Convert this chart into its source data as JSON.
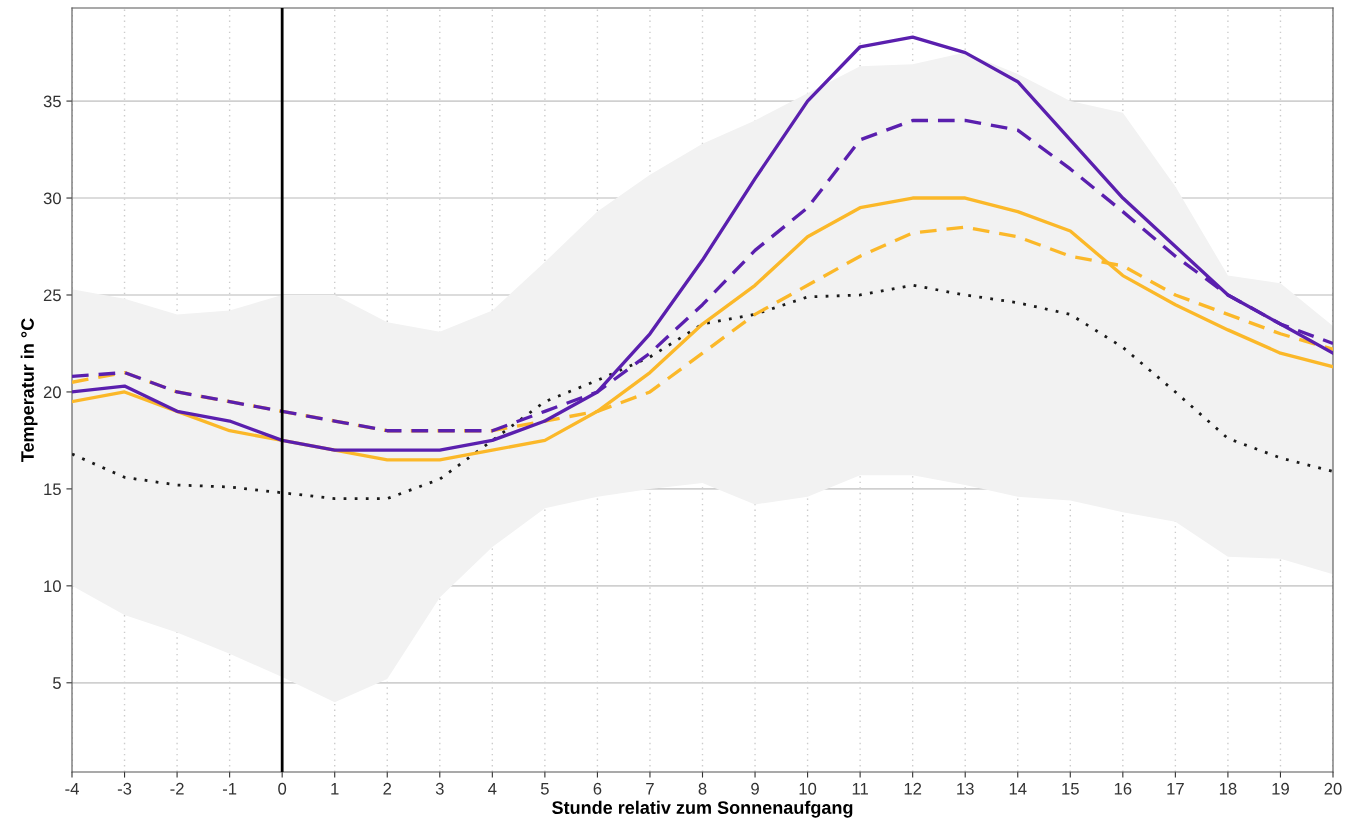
{
  "chart_data": {
    "type": "line",
    "xlabel": "Stunde relativ zum Sonnenaufgang",
    "ylabel": "Temperatur in °C",
    "x": [
      -4,
      -3,
      -2,
      -1,
      0,
      1,
      2,
      3,
      4,
      5,
      6,
      7,
      8,
      9,
      10,
      11,
      12,
      13,
      14,
      15,
      16,
      17,
      18,
      19,
      20
    ],
    "series": [
      {
        "color": "#1a1a1a",
        "line_style": "dotted",
        "values": [
          16.8,
          15.6,
          15.2,
          15.1,
          14.8,
          14.5,
          14.5,
          15.5,
          17.5,
          19.5,
          20.6,
          21.8,
          23.5,
          24,
          24.9,
          25,
          25.5,
          25,
          24.6,
          24,
          22.3,
          20,
          17.6,
          16.6,
          15.9
        ],
        "lower": [
          10,
          8.5,
          7.6,
          6.5,
          5.3,
          4,
          5.2,
          9.4,
          12,
          14,
          14.6,
          15,
          15.3,
          14.2,
          14.6,
          15.7,
          15.7,
          15.2,
          14.6,
          14.4,
          13.8,
          13.3,
          11.5,
          11.4,
          10.6
        ],
        "upper": [
          25.3,
          24.8,
          24,
          24.2,
          25,
          25,
          23.6,
          23.1,
          24.2,
          26.7,
          29.3,
          31.2,
          32.8,
          34,
          35.4,
          36.8,
          36.9,
          37.5,
          36.4,
          35,
          34.4,
          30.6,
          26,
          25.6,
          23.4
        ]
      },
      {
        "color": "#fbb829",
        "line_style": "dashed",
        "values": [
          20.5,
          21,
          20,
          19.5,
          19,
          18.5,
          18,
          18,
          18,
          18.5,
          19,
          20,
          22,
          24,
          25.5,
          27,
          28.2,
          28.5,
          28,
          27,
          26.5,
          25,
          24,
          23,
          22.2
        ]
      },
      {
        "color": "#fbb829",
        "line_style": "solid",
        "values": [
          19.5,
          20,
          19,
          18,
          17.5,
          17,
          16.5,
          16.5,
          17,
          17.5,
          19,
          21,
          23.5,
          25.5,
          28,
          29.5,
          30,
          30,
          29.3,
          28.3,
          26,
          24.5,
          23.2,
          22,
          21.3
        ]
      },
      {
        "color": "#5a1fae",
        "line_style": "dashed",
        "values": [
          20.8,
          21,
          20,
          19.5,
          19,
          18.5,
          18,
          18,
          18,
          19,
          20,
          22,
          24.5,
          27.3,
          29.5,
          33,
          34,
          34,
          33.5,
          31.5,
          29.3,
          27,
          25,
          23.5,
          22.5
        ]
      },
      {
        "color": "#5a1fae",
        "line_style": "solid",
        "values": [
          20,
          20.3,
          19,
          18.5,
          17.5,
          17,
          17,
          17,
          17.5,
          18.5,
          20,
          23,
          26.8,
          31,
          35,
          37.8,
          38.3,
          37.5,
          36,
          33,
          30,
          27.5,
          25,
          23.5,
          22
        ]
      }
    ],
    "ref_lines": [
      {
        "axis": "x",
        "value": 0,
        "color": "#000000",
        "line_style": "solid"
      }
    ],
    "xlim": [
      -4,
      20
    ],
    "xticks": [
      -4,
      -3,
      -2,
      -1,
      0,
      1,
      2,
      3,
      4,
      5,
      6,
      7,
      8,
      9,
      10,
      11,
      12,
      13,
      14,
      15,
      16,
      17,
      18,
      19,
      20
    ],
    "ylim": [
      0.4,
      39.8
    ],
    "yticks": [
      5,
      10,
      15,
      20,
      25,
      30,
      35
    ],
    "grid": true,
    "legend": false
  }
}
